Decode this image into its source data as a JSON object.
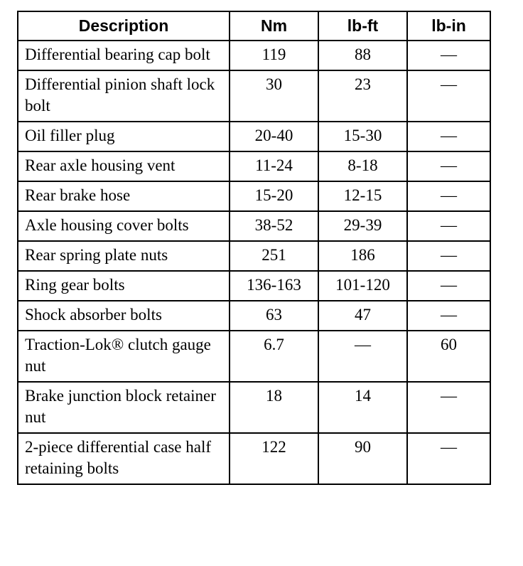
{
  "headers": [
    "Description",
    "Nm",
    "lb-ft",
    "lb-in"
  ],
  "rows": [
    {
      "desc": "Differential bearing cap bolt",
      "nm": "119",
      "lbft": "88",
      "lbin": "—"
    },
    {
      "desc": "Differential pinion shaft lock bolt",
      "nm": "30",
      "lbft": "23",
      "lbin": "—"
    },
    {
      "desc": "Oil filler plug",
      "nm": "20-40",
      "lbft": "15-30",
      "lbin": "—"
    },
    {
      "desc": "Rear axle housing vent",
      "nm": "11-24",
      "lbft": "8-18",
      "lbin": "—"
    },
    {
      "desc": "Rear brake hose",
      "nm": "15-20",
      "lbft": "12-15",
      "lbin": "—"
    },
    {
      "desc": "Axle housing cover bolts",
      "nm": "38-52",
      "lbft": "29-39",
      "lbin": "—"
    },
    {
      "desc": "Rear spring plate nuts",
      "nm": "251",
      "lbft": "186",
      "lbin": "—"
    },
    {
      "desc": "Ring gear bolts",
      "nm": "136-163",
      "lbft": "101-120",
      "lbin": "—"
    },
    {
      "desc": "Shock absorber bolts",
      "nm": "63",
      "lbft": "47",
      "lbin": "—"
    },
    {
      "desc": "Traction-Lok® clutch gauge nut",
      "nm": "6.7",
      "lbft": "—",
      "lbin": "60"
    },
    {
      "desc": "Brake junction block retainer nut",
      "nm": "18",
      "lbft": "14",
      "lbin": "—"
    },
    {
      "desc": "2-piece differential case half retaining bolts",
      "nm": "122",
      "lbft": "90",
      "lbin": "—"
    }
  ]
}
